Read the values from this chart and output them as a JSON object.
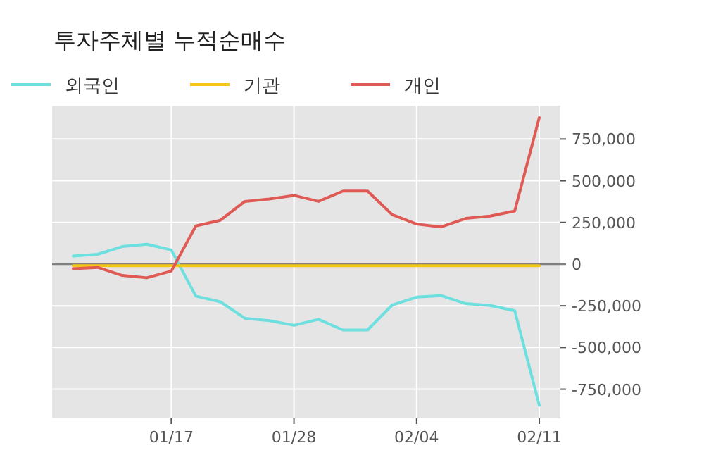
{
  "chart_data": {
    "type": "line",
    "title": "투자주체별 누적순매수",
    "categories": [
      null,
      null,
      null,
      null,
      "01/17",
      null,
      null,
      null,
      null,
      "01/28",
      null,
      null,
      null,
      null,
      "02/04",
      null,
      null,
      null,
      null,
      "02/11"
    ],
    "series": [
      {
        "name": "외국인",
        "color": "#6ddfdf",
        "values": [
          48000,
          59000,
          105000,
          119000,
          85000,
          -192000,
          -226000,
          -325000,
          -339000,
          -367000,
          -331000,
          -395000,
          -395000,
          -246000,
          -198000,
          -189000,
          -237000,
          -248000,
          -280000,
          -847000
        ]
      },
      {
        "name": "기관",
        "color": "#f5c518",
        "values": [
          -10000,
          -10000,
          -10000,
          -10000,
          -10000,
          -10000,
          -10000,
          -10000,
          -10000,
          -10000,
          -10000,
          -10000,
          -10000,
          -10000,
          -10000,
          -10000,
          -10000,
          -10000,
          -10000,
          -10000
        ]
      },
      {
        "name": "개인",
        "color": "#e05a55",
        "values": [
          -28000,
          -20000,
          -68000,
          -82000,
          -42000,
          229000,
          263000,
          376000,
          390000,
          412000,
          376000,
          438000,
          438000,
          297000,
          240000,
          223000,
          274000,
          288000,
          319000,
          879000
        ]
      }
    ],
    "ylim": [
      -925000,
      950000
    ],
    "yticks": [
      {
        "value": -750000,
        "label": "-750,000"
      },
      {
        "value": -500000,
        "label": "-500,000"
      },
      {
        "value": -250000,
        "label": "-250,000"
      },
      0,
      {
        "value": 250000,
        "label": "250,000"
      },
      {
        "value": 500000,
        "label": "500,000"
      },
      {
        "value": 750000,
        "label": "750,000"
      }
    ],
    "ref_lines": [
      {
        "axis": "y",
        "value": 0,
        "color": "#808080"
      }
    ],
    "grid": true,
    "legend": "top left",
    "marker": "none",
    "line_style": "solid"
  }
}
